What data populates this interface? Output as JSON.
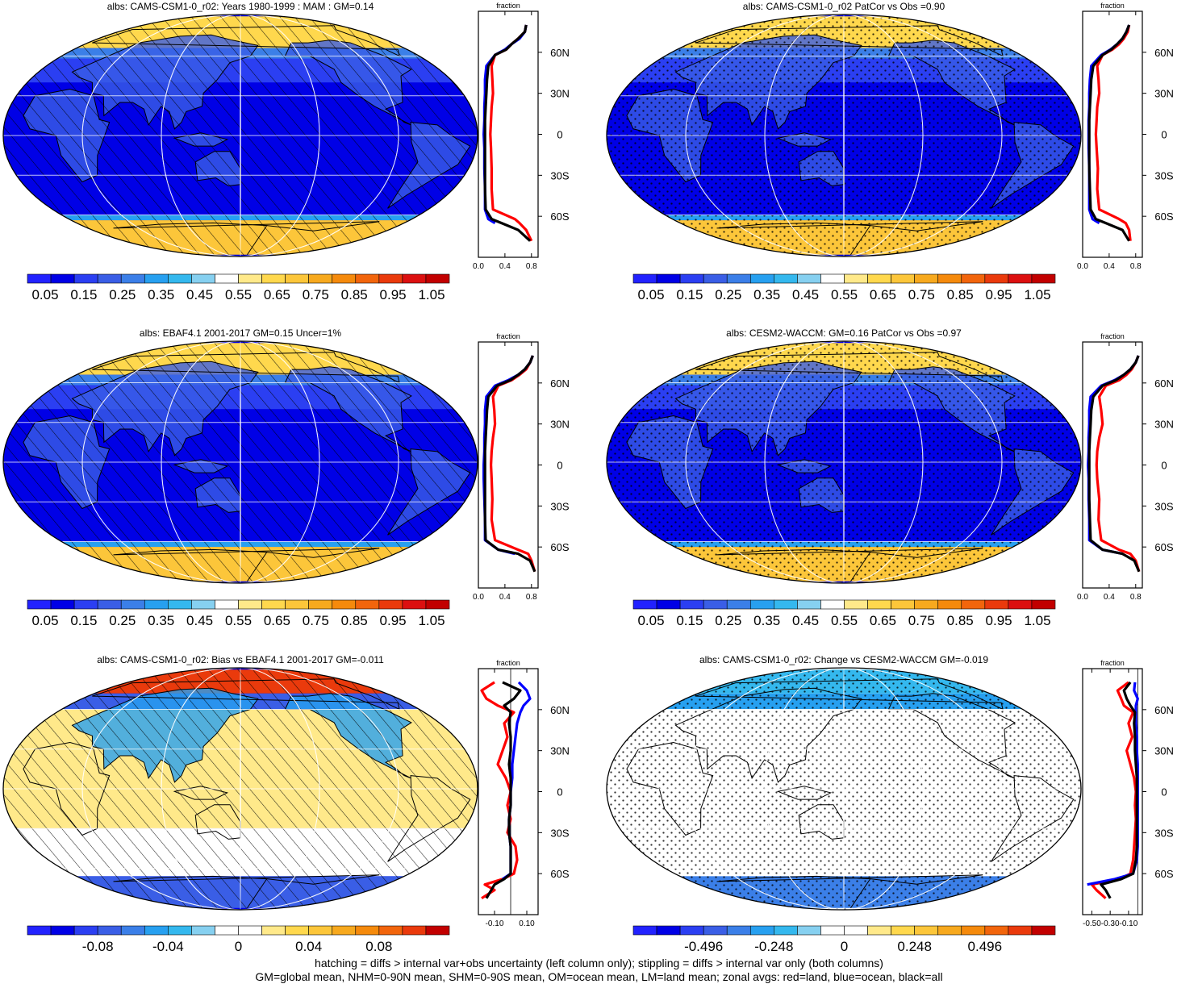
{
  "panels": [
    {
      "title": "albs: CAMS-CSM1-0_r02: Years 1980-1999 : MAM : GM=0.14",
      "field": "abs",
      "hatch": "lines",
      "stipple": false,
      "colorbar": [
        "0.05",
        "0.15",
        "0.25",
        "0.35",
        "0.45",
        "0.55",
        "0.65",
        "0.75",
        "0.85",
        "0.95",
        "1.05"
      ],
      "zonal": {
        "xlabel": "fraction",
        "xticks": [
          "0.0",
          "0.4",
          "0.8"
        ],
        "xlim": [
          0,
          0.9
        ],
        "lat": [
          -78,
          -70,
          -65,
          -62,
          -55,
          -40,
          -25,
          -10,
          0,
          10,
          20,
          30,
          40,
          50,
          58,
          62,
          66,
          70,
          75,
          80
        ],
        "land": [
          0.8,
          0.72,
          0.62,
          0.55,
          0.22,
          0.2,
          0.2,
          0.19,
          0.18,
          0.19,
          0.2,
          0.22,
          0.21,
          0.2,
          0.25,
          0.42,
          0.5,
          0.6,
          0.7,
          0.72
        ],
        "ocean": [
          null,
          null,
          0.25,
          0.15,
          0.1,
          0.1,
          0.09,
          0.09,
          0.08,
          0.09,
          0.09,
          0.1,
          0.1,
          0.12,
          0.25,
          0.4,
          0.5,
          0.62,
          0.7,
          0.72
        ],
        "all": [
          0.78,
          0.6,
          0.35,
          0.2,
          0.11,
          0.1,
          0.1,
          0.1,
          0.1,
          0.1,
          0.11,
          0.12,
          0.13,
          0.15,
          0.25,
          0.42,
          0.5,
          0.6,
          0.7,
          0.72
        ]
      }
    },
    {
      "title": "albs: CAMS-CSM1-0_r02 PatCor vs Obs =0.90",
      "field": "abs",
      "hatch": "none",
      "stipple": true,
      "colorbar": [
        "0.05",
        "0.15",
        "0.25",
        "0.35",
        "0.45",
        "0.55",
        "0.65",
        "0.75",
        "0.85",
        "0.95",
        "1.05"
      ],
      "zonal": {
        "xlabel": "fraction",
        "xticks": [
          "0.0",
          "0.4",
          "0.8"
        ],
        "xlim": [
          0,
          0.9
        ],
        "lat": [
          -78,
          -70,
          -65,
          -62,
          -55,
          -40,
          -25,
          -10,
          0,
          10,
          20,
          30,
          40,
          50,
          58,
          62,
          66,
          70,
          75,
          80
        ],
        "land": [
          0.72,
          0.7,
          0.65,
          0.55,
          0.25,
          0.22,
          0.23,
          0.21,
          0.2,
          0.21,
          0.22,
          0.25,
          0.24,
          0.22,
          0.3,
          0.45,
          0.55,
          0.62,
          0.68,
          0.7
        ],
        "ocean": [
          null,
          null,
          0.25,
          0.15,
          0.1,
          0.1,
          0.1,
          0.09,
          0.09,
          0.09,
          0.1,
          0.1,
          0.11,
          0.13,
          0.28,
          0.42,
          0.52,
          0.6,
          0.66,
          0.7
        ],
        "all": [
          0.7,
          0.6,
          0.35,
          0.2,
          0.12,
          0.11,
          0.1,
          0.1,
          0.1,
          0.1,
          0.11,
          0.12,
          0.13,
          0.16,
          0.3,
          0.43,
          0.52,
          0.6,
          0.66,
          0.7
        ]
      }
    },
    {
      "title": "albs: EBAF4.1 2001-2017 GM=0.15 Uncer=1%",
      "field": "abs",
      "hatch": "lines",
      "stipple": false,
      "colorbar": [
        "0.05",
        "0.15",
        "0.25",
        "0.35",
        "0.45",
        "0.55",
        "0.65",
        "0.75",
        "0.85",
        "0.95",
        "1.05"
      ],
      "zonal": {
        "xlabel": "fraction",
        "xticks": [
          "0.0",
          "0.4",
          "0.8"
        ],
        "xlim": [
          0,
          0.9
        ],
        "lat": [
          -78,
          -70,
          -65,
          -62,
          -55,
          -40,
          -25,
          -10,
          0,
          10,
          20,
          30,
          40,
          50,
          58,
          62,
          66,
          70,
          75,
          80
        ],
        "land": [
          0.85,
          0.8,
          0.75,
          0.6,
          0.25,
          0.2,
          0.21,
          0.2,
          0.19,
          0.2,
          0.22,
          0.25,
          0.24,
          0.22,
          0.3,
          0.5,
          0.62,
          0.72,
          0.78,
          0.82
        ],
        "ocean": [
          null,
          null,
          0.55,
          0.3,
          0.1,
          0.1,
          0.09,
          0.08,
          0.08,
          0.09,
          0.09,
          0.1,
          0.1,
          0.12,
          0.25,
          0.45,
          0.6,
          0.7,
          0.78,
          0.82
        ],
        "all": [
          0.85,
          0.78,
          0.6,
          0.3,
          0.11,
          0.1,
          0.1,
          0.1,
          0.1,
          0.1,
          0.11,
          0.12,
          0.13,
          0.15,
          0.28,
          0.48,
          0.6,
          0.7,
          0.78,
          0.82
        ]
      }
    },
    {
      "title": "albs: CESM2-WACCM: GM=0.16 PatCor vs Obs =0.97",
      "field": "abs",
      "hatch": "none",
      "stipple": true,
      "colorbar": [
        "0.05",
        "0.15",
        "0.25",
        "0.35",
        "0.45",
        "0.55",
        "0.65",
        "0.75",
        "0.85",
        "0.95",
        "1.05"
      ],
      "zonal": {
        "xlabel": "fraction",
        "xticks": [
          "0.0",
          "0.4",
          "0.8"
        ],
        "xlim": [
          0,
          0.9
        ],
        "lat": [
          -78,
          -70,
          -65,
          -62,
          -55,
          -40,
          -25,
          -10,
          0,
          10,
          20,
          30,
          40,
          50,
          58,
          62,
          66,
          70,
          75,
          80
        ],
        "land": [
          0.85,
          0.8,
          0.72,
          0.55,
          0.28,
          0.24,
          0.25,
          0.22,
          0.21,
          0.22,
          0.25,
          0.3,
          0.28,
          0.25,
          0.35,
          0.55,
          0.66,
          0.74,
          0.8,
          0.84
        ],
        "ocean": [
          null,
          null,
          0.6,
          0.3,
          0.1,
          0.1,
          0.09,
          0.09,
          0.08,
          0.09,
          0.09,
          0.1,
          0.1,
          0.12,
          0.28,
          0.48,
          0.62,
          0.72,
          0.8,
          0.84
        ],
        "all": [
          0.85,
          0.78,
          0.6,
          0.3,
          0.12,
          0.11,
          0.1,
          0.1,
          0.1,
          0.1,
          0.11,
          0.12,
          0.13,
          0.16,
          0.3,
          0.5,
          0.62,
          0.72,
          0.8,
          0.84
        ]
      }
    },
    {
      "title": "albs: CAMS-CSM1-0_r02: Bias vs EBAF4.1 2001-2017 GM=-0.011",
      "field": "bias",
      "hatch": "lines",
      "stipple": false,
      "colorbar": [
        "-0.08",
        "-0.04",
        "0",
        "0.04",
        "0.08"
      ],
      "zonal": {
        "xlabel": "fraction",
        "xticks": [
          "-0.10",
          "0.10"
        ],
        "xlim": [
          -0.2,
          0.17
        ],
        "lat": [
          -78,
          -72,
          -68,
          -64,
          -60,
          -50,
          -40,
          -30,
          -20,
          -10,
          0,
          10,
          20,
          30,
          40,
          50,
          58,
          63,
          68,
          74,
          80
        ],
        "land": [
          -0.18,
          -0.1,
          -0.16,
          -0.05,
          0.02,
          0.04,
          0.03,
          -0.02,
          0.0,
          -0.02,
          0.0,
          -0.03,
          -0.08,
          -0.05,
          -0.02,
          -0.04,
          0.02,
          -0.08,
          -0.15,
          -0.18,
          -0.1
        ],
        "ocean": [
          null,
          null,
          null,
          -0.05,
          0.0,
          0.0,
          0.0,
          -0.01,
          -0.01,
          0.0,
          0.0,
          0.01,
          0.01,
          0.02,
          0.03,
          0.04,
          0.06,
          0.08,
          0.12,
          0.1,
          0.05
        ],
        "all": [
          -0.15,
          -0.12,
          -0.1,
          -0.04,
          0.0,
          0.0,
          0.0,
          -0.01,
          -0.01,
          0.0,
          0.0,
          0.0,
          -0.01,
          0.0,
          0.0,
          -0.01,
          0.0,
          -0.04,
          0.02,
          0.06,
          -0.05
        ]
      }
    },
    {
      "title": "albs: CAMS-CSM1-0_r02: Change vs CESM2-WACCM GM=-0.019",
      "field": "change",
      "hatch": "none",
      "stipple": true,
      "colorbar": [
        "-0.496",
        "-0.248",
        "0",
        "0.248",
        "0.496"
      ],
      "zonal": {
        "xlabel": "fraction",
        "xticks": [
          "-0.50",
          "-0.30",
          "-0.10"
        ],
        "xlim": [
          -0.6,
          0.05
        ],
        "lat": [
          -78,
          -72,
          -68,
          -64,
          -60,
          -50,
          -40,
          -30,
          -20,
          -10,
          0,
          10,
          20,
          30,
          40,
          50,
          58,
          63,
          68,
          74,
          80
        ],
        "land": [
          -0.35,
          -0.45,
          -0.5,
          -0.2,
          -0.08,
          -0.05,
          -0.04,
          -0.03,
          -0.02,
          -0.03,
          -0.02,
          -0.04,
          -0.08,
          -0.12,
          -0.06,
          -0.1,
          -0.05,
          -0.15,
          -0.18,
          -0.22,
          -0.1
        ],
        "ocean": [
          null,
          null,
          -0.55,
          -0.25,
          -0.05,
          -0.01,
          0.0,
          0.0,
          0.0,
          0.0,
          0.0,
          0.0,
          0.0,
          -0.01,
          -0.01,
          -0.02,
          -0.02,
          -0.02,
          0.0,
          -0.04,
          -0.03
        ],
        "all": [
          -0.3,
          -0.35,
          -0.4,
          -0.18,
          -0.05,
          -0.02,
          -0.01,
          -0.01,
          -0.01,
          -0.01,
          -0.01,
          -0.01,
          -0.02,
          -0.03,
          -0.03,
          -0.04,
          -0.03,
          -0.08,
          -0.12,
          -0.15,
          -0.08
        ]
      }
    }
  ],
  "lat_ticks": [
    "60N",
    "30N",
    "0",
    "30S",
    "60S"
  ],
  "footer": [
    "hatching = diffs > internal var+obs uncertainty (left column only); stippling = diffs > internal var only (both columns)",
    "GM=global mean, NHM=0-90N mean, SHM=0-90S mean, OM=ocean mean, LM=land mean; zonal avgs: red=land, blue=ocean, black=all"
  ],
  "colors": {
    "land_line": "#ff0000",
    "ocean_line": "#0000ff",
    "all_line": "#000000",
    "abs_scale": [
      "#2222ff",
      "#0000e6",
      "#2b3ff2",
      "#3a5ee6",
      "#3b7fe8",
      "#27a0f0",
      "#34b8ee",
      "#86d0f0",
      "#ffffff",
      "#ffe98a",
      "#ffd84d",
      "#fcc63a",
      "#f7a91e",
      "#f58a0c",
      "#f2650c",
      "#ea3a0c",
      "#dc1010",
      "#c20000"
    ],
    "diff_scale": [
      "#2222ff",
      "#0000e6",
      "#2b3ff2",
      "#3a5ee6",
      "#3b7fe8",
      "#27a0f0",
      "#34b8ee",
      "#86d0f0",
      "#ffffff",
      "#ffffff",
      "#ffe98a",
      "#ffd84d",
      "#fcc63a",
      "#f7a91e",
      "#f58a0c",
      "#f2650c",
      "#ea3a0c",
      "#c20000"
    ]
  }
}
